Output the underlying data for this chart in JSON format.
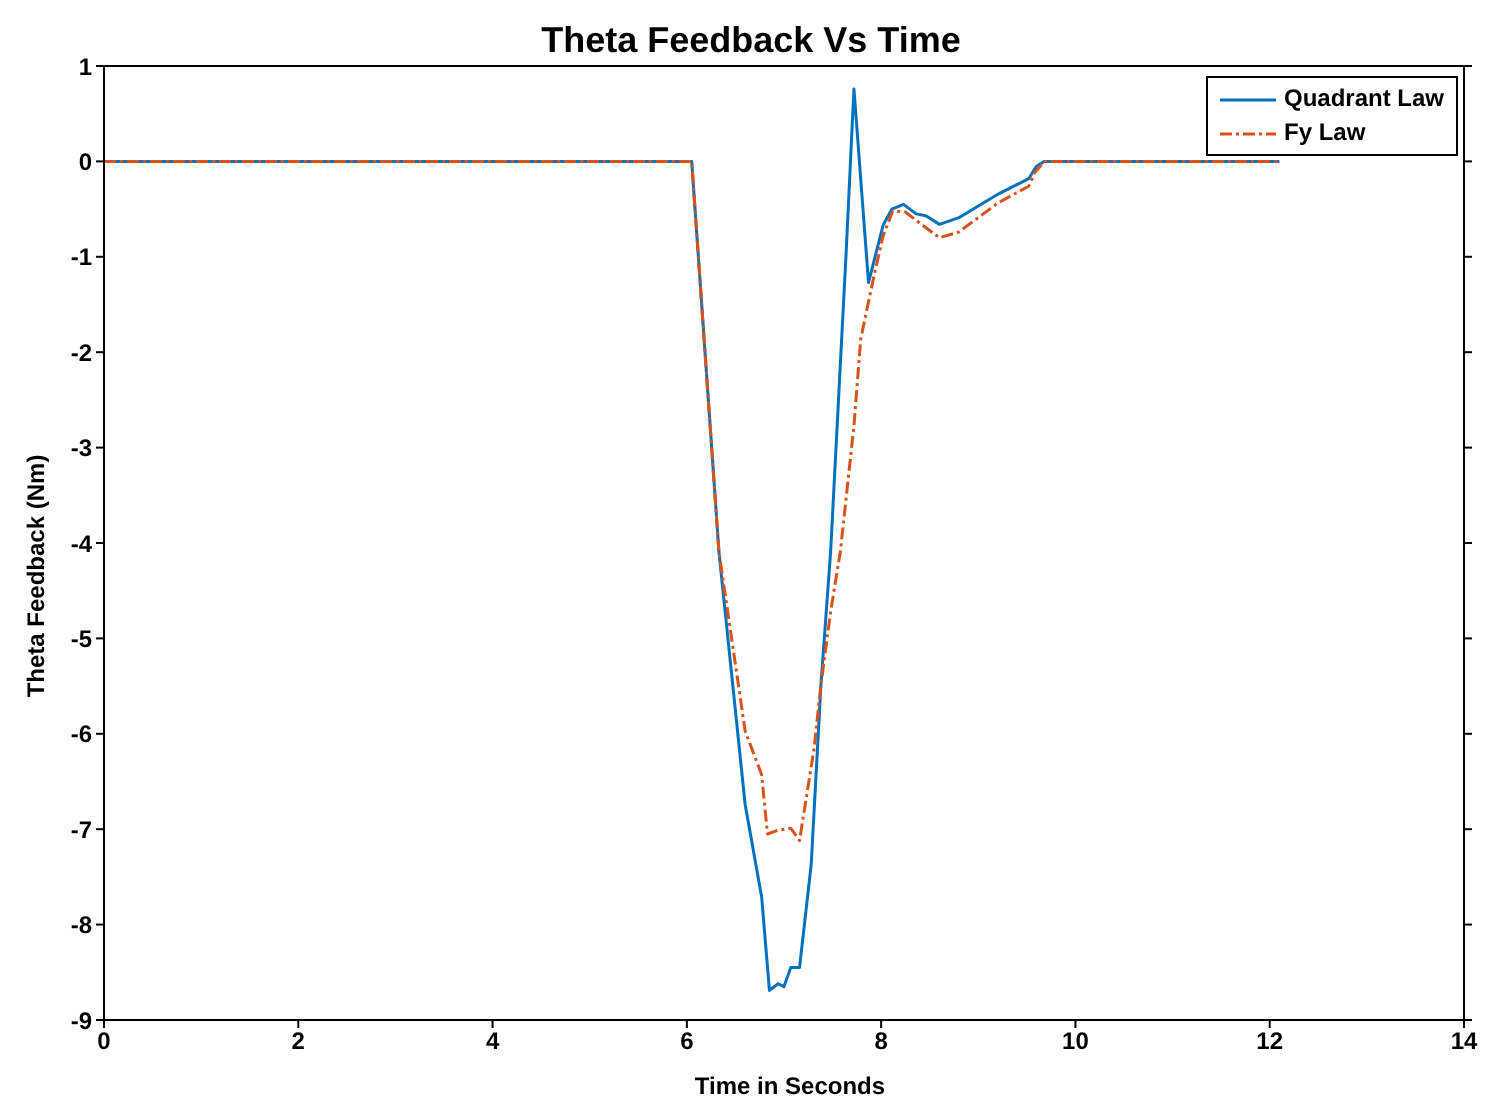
{
  "chart_data": {
    "type": "line",
    "title": "Theta Feedback Vs Time",
    "xlabel": "Time in Seconds",
    "ylabel": "Theta Feedback (Nm)",
    "xlim": [
      0,
      14
    ],
    "xticks": [
      0,
      2,
      4,
      6,
      8,
      10,
      12,
      14
    ],
    "ylim": [
      -9,
      1
    ],
    "yticks": [
      -9,
      -8,
      -7,
      -6,
      -5,
      -4,
      -3,
      -2,
      -1,
      0,
      1
    ],
    "legend": "top right",
    "marker": "none",
    "series": [
      {
        "name": "Quadrant Law",
        "color": "#0072bd",
        "line_style": "solid",
        "x": [
          0,
          6.05,
          6.33,
          6.6,
          6.77,
          6.85,
          6.94,
          7.0,
          7.07,
          7.16,
          7.28,
          7.38,
          7.48,
          7.64,
          7.72,
          7.87,
          8.02,
          8.11,
          8.23,
          8.36,
          8.46,
          8.6,
          8.8,
          9.21,
          9.52,
          9.6,
          9.68,
          12.1
        ],
        "values": [
          0,
          0,
          -4.09,
          -6.74,
          -7.71,
          -8.69,
          -8.62,
          -8.65,
          -8.45,
          -8.45,
          -7.37,
          -5.49,
          -4.09,
          -0.95,
          0.76,
          -1.27,
          -0.67,
          -0.5,
          -0.45,
          -0.55,
          -0.57,
          -0.66,
          -0.59,
          -0.34,
          -0.18,
          -0.05,
          0,
          0
        ]
      },
      {
        "name": "Fy Law",
        "color": "#d95319",
        "line_style": "dashed",
        "x": [
          0,
          6.05,
          6.33,
          6.6,
          6.77,
          6.83,
          6.94,
          7.07,
          7.16,
          7.31,
          7.38,
          7.48,
          7.58,
          7.72,
          7.79,
          7.92,
          8.02,
          8.12,
          8.25,
          8.39,
          8.6,
          8.8,
          9.21,
          9.52,
          9.58,
          9.68,
          12.1
        ],
        "values": [
          0,
          0,
          -4.09,
          -5.97,
          -6.43,
          -7.05,
          -7.01,
          -6.99,
          -7.12,
          -6.15,
          -5.49,
          -4.72,
          -4.09,
          -2.77,
          -1.86,
          -1.23,
          -0.78,
          -0.52,
          -0.53,
          -0.64,
          -0.8,
          -0.74,
          -0.43,
          -0.26,
          -0.12,
          0,
          0
        ]
      }
    ]
  }
}
